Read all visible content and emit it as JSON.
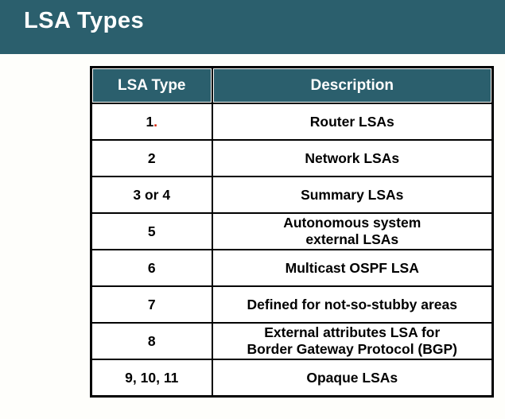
{
  "slide": {
    "title": "LSA Types"
  },
  "colors": {
    "header_teal": "#2B5F6D",
    "slide_background": "#FEFEFB",
    "table_border": "#000000",
    "header_text": "#FFFFFF",
    "body_text": "#000000",
    "red_mark": "#D42100"
  },
  "table": {
    "columns": {
      "lsa_type": "LSA Type",
      "description": "Description"
    },
    "rows": [
      {
        "lsa_type": "1",
        "red_mark": ".",
        "description": "Router LSAs"
      },
      {
        "lsa_type": "2",
        "description": "Network LSAs"
      },
      {
        "lsa_type": "3 or 4",
        "description": "Summary LSAs"
      },
      {
        "lsa_type": "5",
        "description": "Autonomous system\nexternal LSAs"
      },
      {
        "lsa_type": "6",
        "description": "Multicast OSPF LSA"
      },
      {
        "lsa_type": "7",
        "description": "Defined for not-so-stubby areas"
      },
      {
        "lsa_type": "8",
        "description": "External attributes LSA for\nBorder Gateway Protocol (BGP)"
      },
      {
        "lsa_type": "9, 10, 11",
        "description": "Opaque LSAs"
      }
    ]
  }
}
